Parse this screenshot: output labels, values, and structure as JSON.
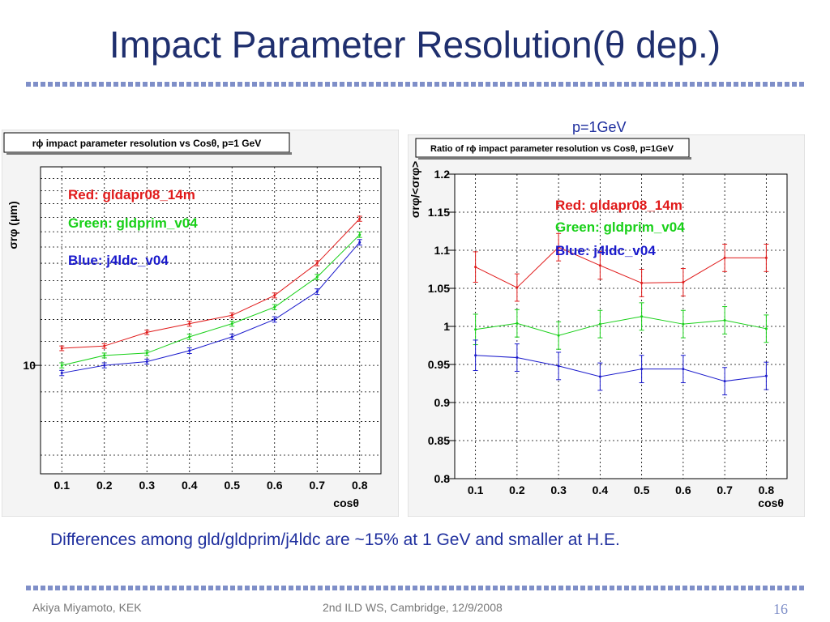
{
  "slide": {
    "title": "Impact Parameter Resolution(θ dep.)",
    "momentum_label": "p=1GeV",
    "caption": "Differences among gld/gldprim/j4ldc are ~15% at 1 GeV and smaller  at H.E.",
    "footer_left": "Akiya Miyamoto, KEK",
    "footer_center": "2nd ILD WS, Cambridge, 12/9/2008",
    "page_number": "16"
  },
  "colors": {
    "red": "#e01a1a",
    "green": "#18d018",
    "blue": "#1a1acc",
    "title": "#1f2f6e",
    "accent": "#7f8fc8"
  },
  "chart_data": [
    {
      "type": "line",
      "title": "rϕ impact parameter resolution vs Cosθ, p=1 GeV",
      "xlabel": "cosθ",
      "ylabel": "σrφ (μm)",
      "xlim": [
        0.05,
        0.85
      ],
      "ylim": [
        6.5,
        22
      ],
      "log_y": true,
      "tick_labels_x": [
        "0.1",
        "0.2",
        "0.3",
        "0.4",
        "0.5",
        "0.6",
        "0.7",
        "0.8"
      ],
      "tick_labels_y": [
        "10"
      ],
      "x": [
        0.1,
        0.2,
        0.3,
        0.4,
        0.5,
        0.6,
        0.7,
        0.8
      ],
      "series": [
        {
          "name": "Red: gldapr08_14m",
          "color": "#e01a1a",
          "values": [
            10.7,
            10.8,
            11.4,
            11.8,
            12.2,
            13.2,
            15.0,
            17.9
          ]
        },
        {
          "name": "Green: gldprim_v04",
          "color": "#18d018",
          "values": [
            10.0,
            10.4,
            10.5,
            11.2,
            11.8,
            12.6,
            14.2,
            16.8
          ]
        },
        {
          "name": "Blue: j4ldc_v04",
          "color": "#1a1acc",
          "values": [
            9.7,
            10.0,
            10.15,
            10.6,
            11.2,
            12.0,
            13.4,
            16.3
          ]
        }
      ],
      "error": [
        0.1,
        0.1,
        0.1,
        0.12,
        0.12,
        0.13,
        0.15,
        0.18
      ]
    },
    {
      "type": "line",
      "title": "Ratio of rϕ impact parameter resolution vs Cosθ, p=1GeV",
      "xlabel": "cosθ",
      "ylabel": "σrφ/<σrφ>",
      "xlim": [
        0.05,
        0.85
      ],
      "ylim": [
        0.8,
        1.2
      ],
      "tick_labels_x": [
        "0.1",
        "0.2",
        "0.3",
        "0.4",
        "0.5",
        "0.6",
        "0.7",
        "0.8"
      ],
      "tick_labels_y": [
        "0.8",
        "0.85",
        "0.9",
        "0.95",
        "1",
        "1.05",
        "1.1",
        "1.15",
        "1.2"
      ],
      "x": [
        0.1,
        0.2,
        0.3,
        0.4,
        0.5,
        0.6,
        0.7,
        0.8
      ],
      "series": [
        {
          "name": "Red: gldapr08_14m",
          "color": "#e01a1a",
          "values": [
            1.078,
            1.051,
            1.104,
            1.08,
            1.057,
            1.058,
            1.09,
            1.09
          ]
        },
        {
          "name": "Green: gldprim_v04",
          "color": "#18d018",
          "values": [
            0.996,
            1.004,
            0.988,
            1.003,
            1.013,
            1.003,
            1.008,
            0.997
          ]
        },
        {
          "name": "Blue: j4ldc_v04",
          "color": "#1a1acc",
          "values": [
            0.962,
            0.959,
            0.948,
            0.934,
            0.944,
            0.944,
            0.928,
            0.935
          ]
        }
      ],
      "error": [
        0.02,
        0.018,
        0.018,
        0.018,
        0.018,
        0.018,
        0.018,
        0.018
      ]
    }
  ]
}
